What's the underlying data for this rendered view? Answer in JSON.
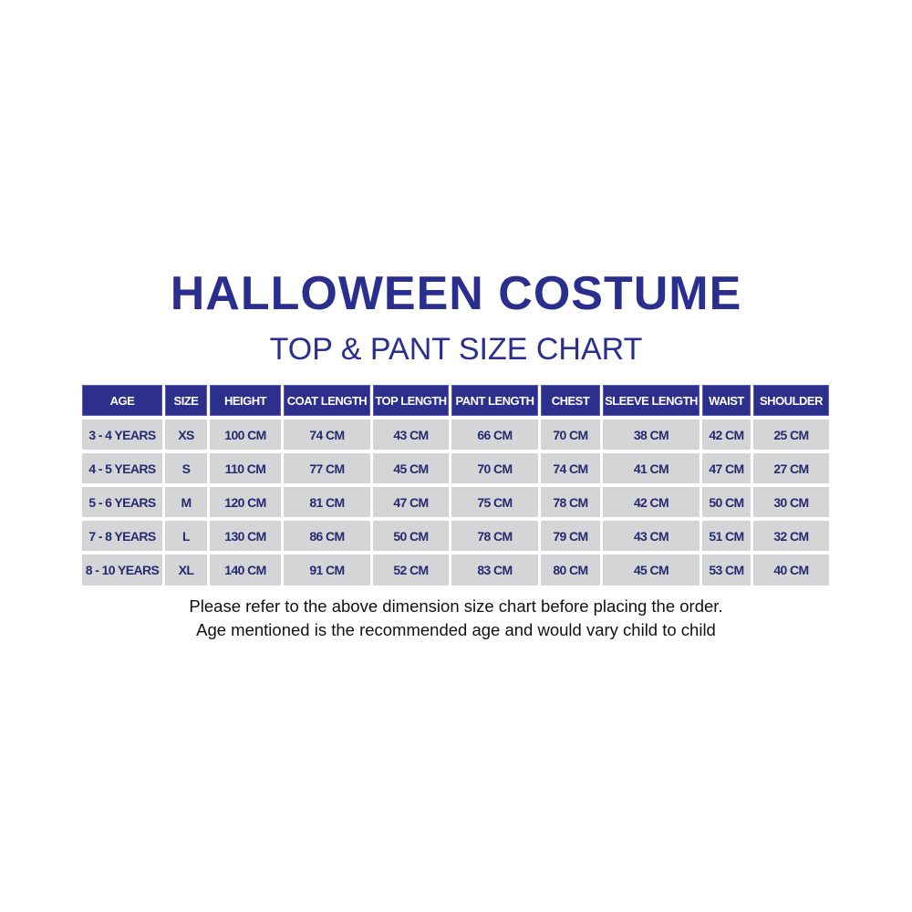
{
  "title": "HALLOWEEN COSTUME",
  "subtitle": "TOP & PANT SIZE CHART",
  "colors": {
    "header_bg": "#2d2f8c",
    "cell_bg": "#d5d5d7",
    "title": "#2a2e8e",
    "cell_text": "#262a70"
  },
  "table": {
    "headers": [
      "AGE",
      "SIZE",
      "HEIGHT",
      "COAT LENGTH",
      "TOP LENGTH",
      "PANT LENGTH",
      "CHEST",
      "SLEEVE LENGTH",
      "WAIST",
      "SHOULDER"
    ],
    "rows": [
      [
        "3 - 4 YEARS",
        "XS",
        "100 CM",
        "74 CM",
        "43 CM",
        "66 CM",
        "70  CM",
        "38 CM",
        "42 CM",
        "25 CM"
      ],
      [
        "4 - 5 YEARS",
        "S",
        "110 CM",
        "77 CM",
        "45 CM",
        "70 CM",
        "74  CM",
        "41 CM",
        "47 CM",
        "27 CM"
      ],
      [
        "5 - 6 YEARS",
        "M",
        "120 CM",
        "81 CM",
        "47 CM",
        "75 CM",
        "78  CM",
        "42 CM",
        "50 CM",
        "30 CM"
      ],
      [
        "7 - 8 YEARS",
        "L",
        "130 CM",
        "86 CM",
        "50 CM",
        "78 CM",
        "79  CM",
        "43 CM",
        "51 CM",
        "32 CM"
      ],
      [
        "8 - 10 YEARS",
        "XL",
        "140 CM",
        "91 CM",
        "52 CM",
        "83 CM",
        "80  CM",
        "45 CM",
        "53 CM",
        "40 CM"
      ]
    ]
  },
  "notes": [
    "Please refer to the above dimension size chart before placing the order.",
    "Age mentioned is the recommended age and would vary child to child"
  ]
}
